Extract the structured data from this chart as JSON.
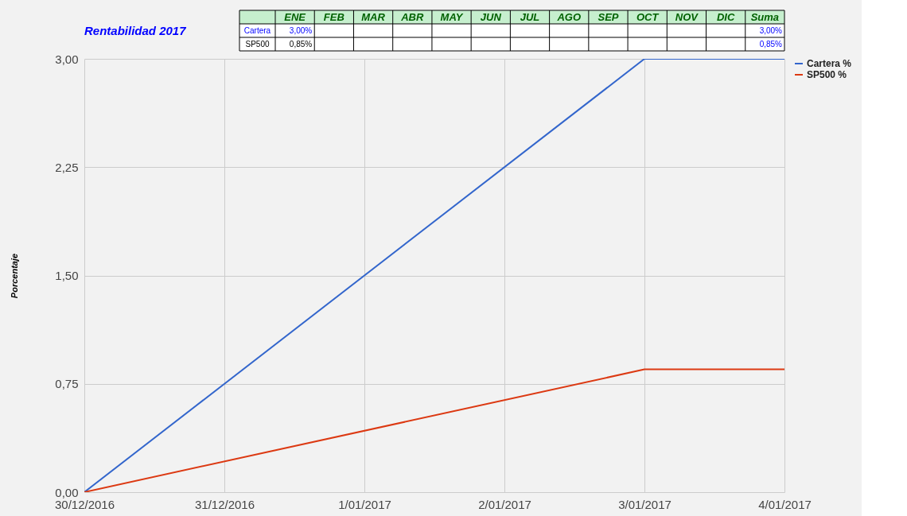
{
  "chart_data": {
    "type": "line",
    "title": "Rentabilidad 2017",
    "ylabel": "Porcentaje",
    "x": [
      "2016-12-30",
      "2017-01-03",
      "2017-01-04"
    ],
    "series": [
      {
        "name": "Cartera %",
        "color": "#3366cc",
        "values": [
          0,
          3.0,
          3.0
        ]
      },
      {
        "name": "SP500 %",
        "color": "#dc3912",
        "values": [
          0,
          0.85,
          0.85
        ]
      }
    ],
    "xlim": [
      "2016-12-30",
      "2017-01-04"
    ],
    "xticks": [
      {
        "value": "2016-12-30",
        "label": "30/12/2016"
      },
      {
        "value": "2016-12-31",
        "label": "31/12/2016"
      },
      {
        "value": "2017-01-01",
        "label": "1/01/2017"
      },
      {
        "value": "2017-01-02",
        "label": "2/01/2017"
      },
      {
        "value": "2017-01-03",
        "label": "3/01/2017"
      },
      {
        "value": "2017-01-04",
        "label": "4/01/2017"
      }
    ],
    "ylim": [
      0,
      3.0
    ],
    "yticks": [
      {
        "value": 0,
        "label": "0,00"
      },
      {
        "value": 0.75,
        "label": "0,75"
      },
      {
        "value": 1.5,
        "label": "1,50"
      },
      {
        "value": 2.25,
        "label": "2,25"
      },
      {
        "value": 3.0,
        "label": "3,00"
      }
    ],
    "grid": true,
    "legend": "top right",
    "marker": "none",
    "line_style": "solid",
    "annotations": [
      "ENE",
      "FEB",
      "MAR",
      "ABR",
      "MAY",
      "JUN",
      "JUL",
      "AGO",
      "SEP",
      "OCT",
      "NOV",
      "DIC",
      "Suma",
      "Cartera",
      "3,00%",
      "3,00%",
      "SP500",
      "0,85%",
      "0,85%"
    ]
  }
}
